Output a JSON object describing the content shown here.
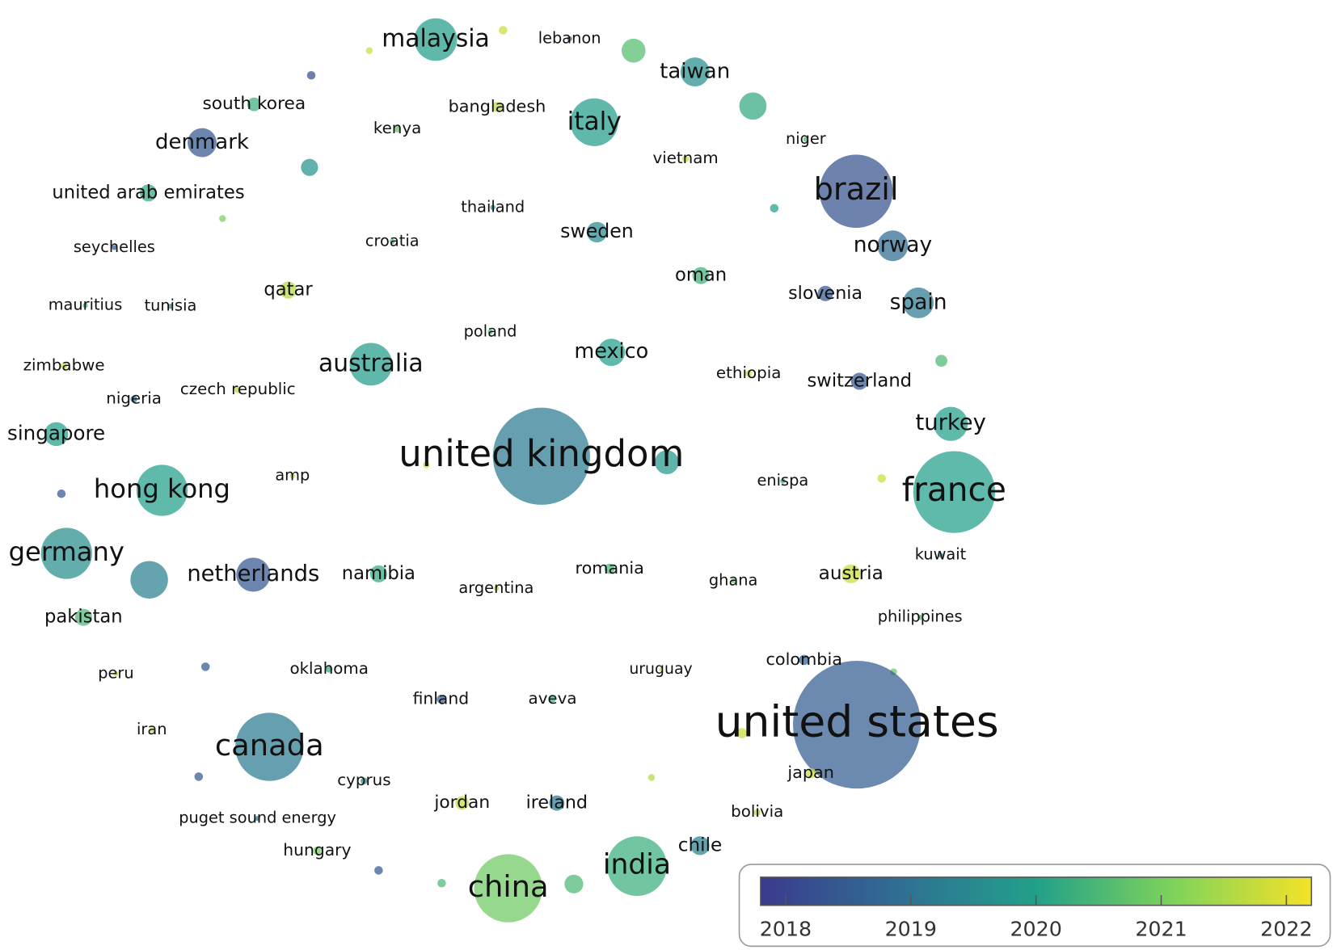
{
  "chart_data": {
    "type": "bubble",
    "xlim": [
      0,
      1568
    ],
    "ylim": [
      1110,
      0
    ],
    "labels": [
      "malaysia",
      null,
      null,
      "lebanon",
      null,
      "taiwan",
      null,
      null,
      "south korea",
      "bangladesh",
      "italy",
      "kenya",
      "denmark",
      "niger",
      null,
      "vietnam",
      "brazil",
      "united arab emirates",
      "thailand",
      null,
      null,
      "sweden",
      "norway",
      "seychelles",
      "croatia",
      "qatar",
      "oman",
      "slovenia",
      "spain",
      "mauritius",
      "tunisia",
      "poland",
      "mexico",
      "australia",
      null,
      "zimbabwe",
      "ethiopia",
      "switzerland",
      "nigeria",
      "czech republic",
      "turkey",
      "singapore",
      "united kingdom",
      null,
      null,
      "amp",
      null,
      "enispa",
      "hong kong",
      null,
      "france",
      "kuwait",
      "germany",
      "netherlands",
      null,
      "namibia",
      "romania",
      "argentina",
      "ghana",
      "austria",
      "philippines",
      "pakistan",
      "peru",
      null,
      "oklahoma",
      "colombia",
      null,
      "uruguay",
      "united states",
      "finland",
      "aveva",
      "iran",
      "canada",
      null,
      null,
      null,
      "cyprus",
      "japan",
      "jordan",
      "ireland",
      "bolivia",
      "puget sound energy",
      "hungary",
      "chile",
      null,
      null,
      "china",
      null,
      "india"
    ],
    "x": [
      511,
      590,
      433,
      668,
      743,
      815,
      883,
      365,
      298,
      583,
      697,
      466,
      237,
      945,
      363,
      804,
      1004,
      174,
      578,
      261,
      908,
      700,
      1047,
      134,
      460,
      338,
      822,
      968,
      1077,
      100,
      200,
      575,
      717,
      435,
      1104,
      75,
      878,
      1008,
      157,
      279,
      1115,
      66,
      635,
      782,
      500,
      343,
      1034,
      918,
      190,
      72,
      1119,
      1103,
      78,
      297,
      175,
      444,
      715,
      582,
      860,
      998,
      1079,
      98,
      136,
      241,
      386,
      943,
      1048,
      775,
      1005,
      517,
      648,
      178,
      316,
      870,
      764,
      233,
      427,
      951,
      542,
      653,
      888,
      302,
      372,
      821,
      444,
      518,
      596,
      673,
      747
    ],
    "y": [
      44,
      33,
      57,
      43,
      57,
      82,
      122,
      86,
      120,
      123,
      141,
      149,
      165,
      161,
      194,
      184,
      222,
      224,
      241,
      254,
      242,
      270,
      286,
      288,
      281,
      338,
      321,
      342,
      353,
      356,
      357,
      387,
      411,
      425,
      421,
      427,
      436,
      445,
      466,
      455,
      495,
      507,
      533,
      540,
      543,
      556,
      559,
      562,
      573,
      577,
      575,
      649,
      647,
      672,
      678,
      671,
      665,
      688,
      679,
      671,
      722,
      722,
      788,
      780,
      783,
      772,
      786,
      783,
      848,
      818,
      818,
      854,
      874,
      858,
      910,
      909,
      914,
      905,
      940,
      940,
      951,
      958,
      996,
      990,
      1019,
      1034,
      1040,
      1035,
      1014
    ],
    "size": [
      25,
      5,
      4,
      3,
      14,
      17,
      16,
      5,
      8,
      6,
      28,
      4,
      17,
      3,
      10,
      4,
      43,
      10,
      3,
      4,
      5,
      12,
      18,
      3,
      3,
      10,
      10,
      9,
      18,
      3,
      3,
      3,
      16,
      25,
      7,
      4,
      4,
      10,
      4,
      4,
      20,
      14,
      57,
      14,
      4,
      3,
      5,
      3,
      30,
      5,
      48,
      3,
      30,
      20,
      22,
      10,
      6,
      3,
      3,
      11,
      3,
      10,
      3,
      5,
      4,
      6,
      4,
      2,
      75,
      5,
      4,
      3,
      40,
      6,
      4,
      5,
      4,
      6,
      8,
      9,
      4,
      3,
      5,
      11,
      5,
      5,
      40,
      11,
      35
    ],
    "values": [
      2019.9,
      2021.8,
      2021.8,
      2018.5,
      2020.6,
      2019.6,
      2020.2,
      2018.2,
      2020.3,
      2021.6,
      2019.9,
      2020.8,
      2018.4,
      2020.5,
      2019.7,
      2021.8,
      2018.3,
      2020.2,
      2019.5,
      2021.0,
      2020.0,
      2019.5,
      2018.8,
      2018.5,
      2020.5,
      2021.6,
      2020.3,
      2018.4,
      2019.1,
      2020.5,
      2019.5,
      2020.5,
      2020.0,
      2019.9,
      2020.5,
      2021.8,
      2021.8,
      2018.4,
      2019.0,
      2021.6,
      2020.0,
      2020.0,
      2019.2,
      2019.8,
      2021.8,
      2021.5,
      2021.8,
      2020.3,
      2020.0,
      2018.4,
      2020.0,
      2019.3,
      2019.6,
      2018.4,
      2019.3,
      2020.2,
      2020.5,
      2021.5,
      2020.8,
      2021.8,
      2020.5,
      2020.5,
      2021.6,
      2018.4,
      2020.2,
      2018.6,
      2020.8,
      2021.8,
      2018.5,
      2018.5,
      2020.3,
      2021.8,
      2019.2,
      2021.8,
      2021.6,
      2018.4,
      2019.5,
      2021.8,
      2021.8,
      2019.2,
      2021.6,
      2019.0,
      2021.0,
      2019.3,
      2018.4,
      2020.5,
      2020.9,
      2020.5,
      2020.3
    ],
    "colorbar": {
      "lim": [
        2017.8,
        2022.2
      ],
      "ticks": [
        2018,
        2019,
        2020,
        2021,
        2022
      ],
      "colors": [
        "#3b3a8c",
        "#2f6f93",
        "#22a08a",
        "#7fd35a",
        "#f5e227"
      ]
    }
  }
}
